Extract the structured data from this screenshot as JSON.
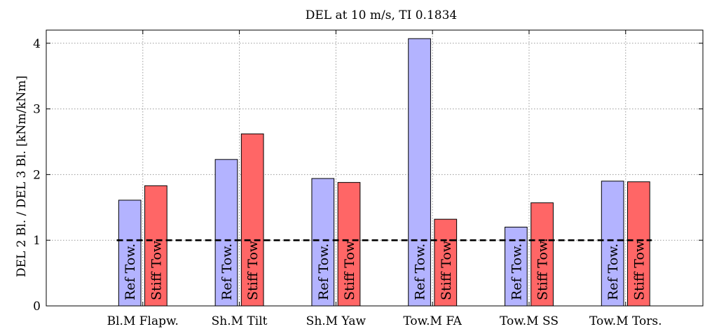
{
  "chart_data": {
    "type": "bar",
    "title": "DEL at 10 m/s, TI 0.1834",
    "xlabel": "",
    "ylabel": "DEL 2 Bl. / DEL 3 Bl.  [kNm/kNm]",
    "ylim": [
      0,
      4.2
    ],
    "yticks": [
      0,
      1,
      2,
      3,
      4
    ],
    "grid": true,
    "categories": [
      "Bl.M Flapw.",
      "Sh.M Tilt",
      "Sh.M Yaw",
      "Tow.M FA",
      "Tow.M SS",
      "Tow.M Tors."
    ],
    "series": [
      {
        "name": "Ref Tow.",
        "color": "#b3b3ff",
        "values": [
          1.61,
          2.23,
          1.94,
          4.07,
          1.2,
          1.9
        ]
      },
      {
        "name": "Stiff Tow.",
        "color": "#ff6666",
        "values": [
          1.83,
          2.62,
          1.88,
          1.32,
          1.57,
          1.89
        ]
      }
    ],
    "reference_line": {
      "y": 1,
      "style": "dashed"
    }
  }
}
